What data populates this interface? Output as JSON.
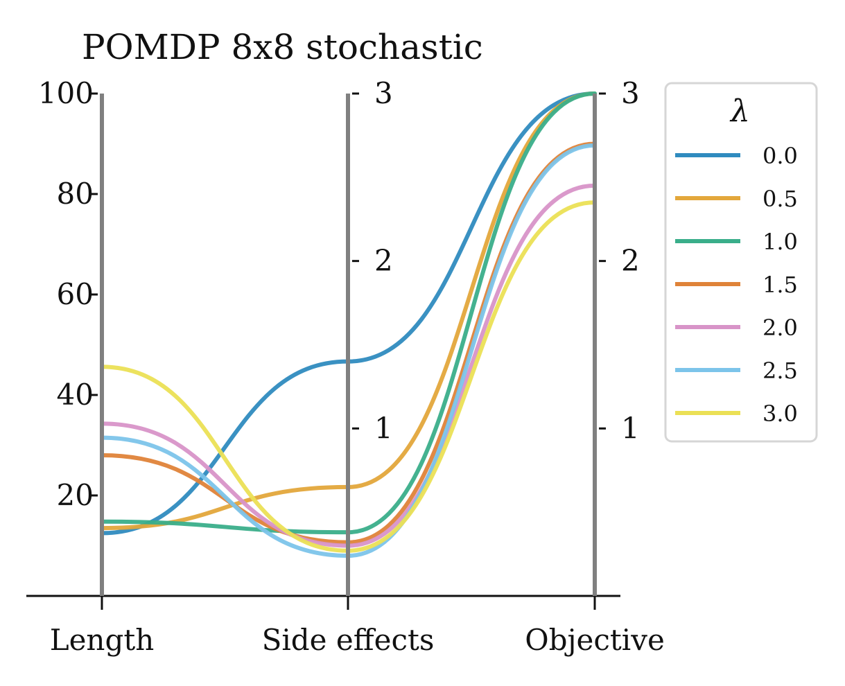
{
  "chart_data": {
    "type": "parallel_coordinates",
    "title": "POMDP 8x8 stochastic",
    "axes": [
      {
        "label": "Length",
        "ticks": [
          "20",
          "40",
          "60",
          "80",
          "100"
        ],
        "range": [
          0,
          100
        ]
      },
      {
        "label": "Side effects",
        "ticks": [
          "1",
          "2",
          "3"
        ],
        "range": [
          0,
          3
        ]
      },
      {
        "label": "Objective",
        "ticks": [
          "1",
          "2",
          "3"
        ],
        "range": [
          0,
          3
        ]
      }
    ],
    "legend": {
      "title": "λ",
      "placement": "right"
    },
    "series": [
      {
        "name": "0.0",
        "values": [
          12.5,
          1.4,
          3.0
        ],
        "color": "#2f8bbf"
      },
      {
        "name": "0.5",
        "values": [
          13.5,
          0.65,
          3.0
        ],
        "color": "#e3a73b"
      },
      {
        "name": "1.0",
        "values": [
          14.8,
          0.38,
          3.0
        ],
        "color": "#3aae8a"
      },
      {
        "name": "1.5",
        "values": [
          28.0,
          0.32,
          2.7
        ],
        "color": "#df8339"
      },
      {
        "name": "2.0",
        "values": [
          34.3,
          0.3,
          2.45
        ],
        "color": "#d894c8"
      },
      {
        "name": "2.5",
        "values": [
          31.5,
          0.24,
          2.69
        ],
        "color": "#7cc4ea"
      },
      {
        "name": "3.0",
        "values": [
          45.6,
          0.27,
          2.35
        ],
        "color": "#ebe055"
      }
    ]
  }
}
